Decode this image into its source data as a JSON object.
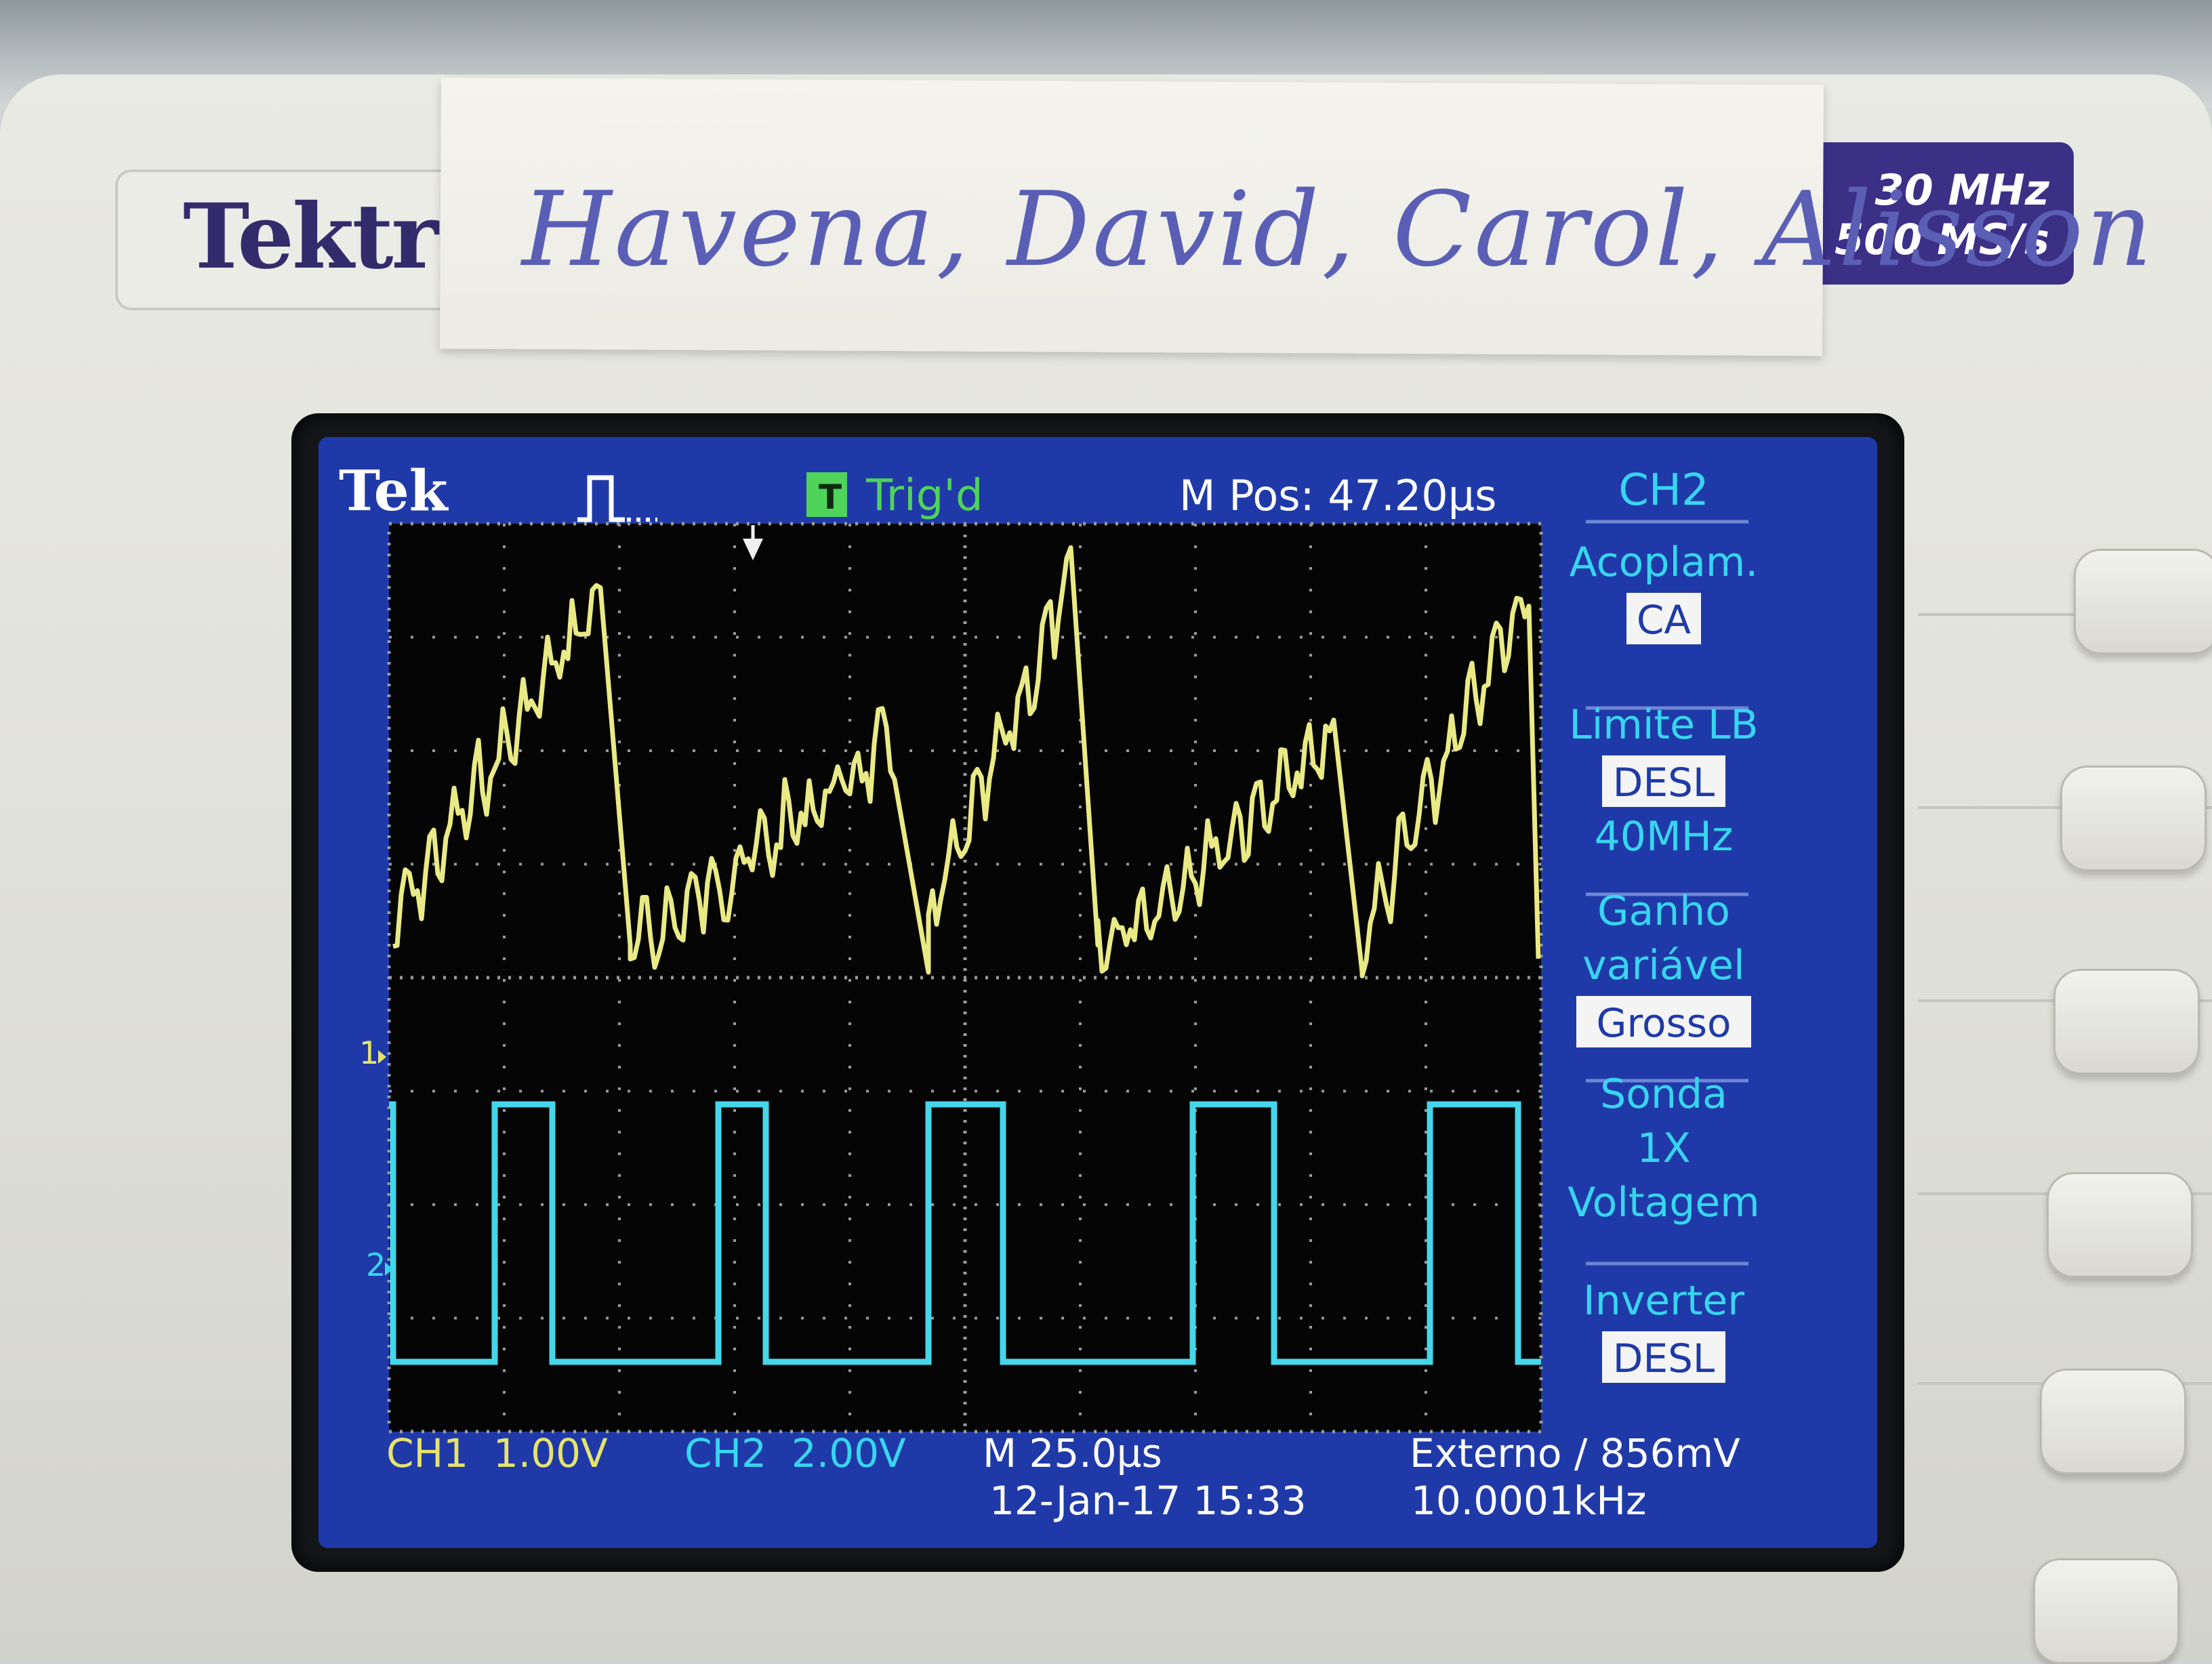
{
  "device": {
    "brand": "Tektr",
    "spec_bandwidth": "30 MHz",
    "spec_sample_rate": "500 MS/s",
    "tape_label": "Havena, David, Carol, Alisson"
  },
  "screen": {
    "logo": "Tek",
    "trigger_status": "Trig'd",
    "trigger_icon": "trigger-status-icon",
    "acquisition_icon": "pulse-icon",
    "m_pos": "M Pos: 47.20µs",
    "ch1_marker": "1",
    "ch2_marker": "2",
    "bottom": {
      "ch1_scale": "CH1  1.00V",
      "ch2_scale": "CH2  2.00V",
      "timebase": "M 25.0µs",
      "datetime": "12-Jan-17 15:33",
      "trigger": "Externo ∕ 856mV",
      "frequency": "10.0001kHz"
    },
    "menu": {
      "title": "CH2",
      "items": [
        {
          "label1": "Acoplam.",
          "label2": "",
          "value": "CA",
          "sub": ""
        },
        {
          "label1": "Limite LB",
          "label2": "",
          "value": "DESL",
          "sub": "40MHz"
        },
        {
          "label1": "Ganho",
          "label2": "variável",
          "value": "Grosso",
          "sub": ""
        },
        {
          "label1": "Sonda",
          "label2": "1X",
          "value": "",
          "sub": "Voltagem"
        },
        {
          "label1": "Inverter",
          "label2": "",
          "value": "DESL",
          "sub": ""
        }
      ]
    }
  },
  "colors": {
    "screen_bg": "#1f3aa8",
    "grid_bg": "#050505",
    "ch1_trace": "#e9ea86",
    "ch2_trace": "#45d6ea",
    "text_cyan": "#38d5f0",
    "text_yellow": "#e6e36e",
    "text_white": "#ffffff",
    "trig_green": "#4fd35a"
  }
}
